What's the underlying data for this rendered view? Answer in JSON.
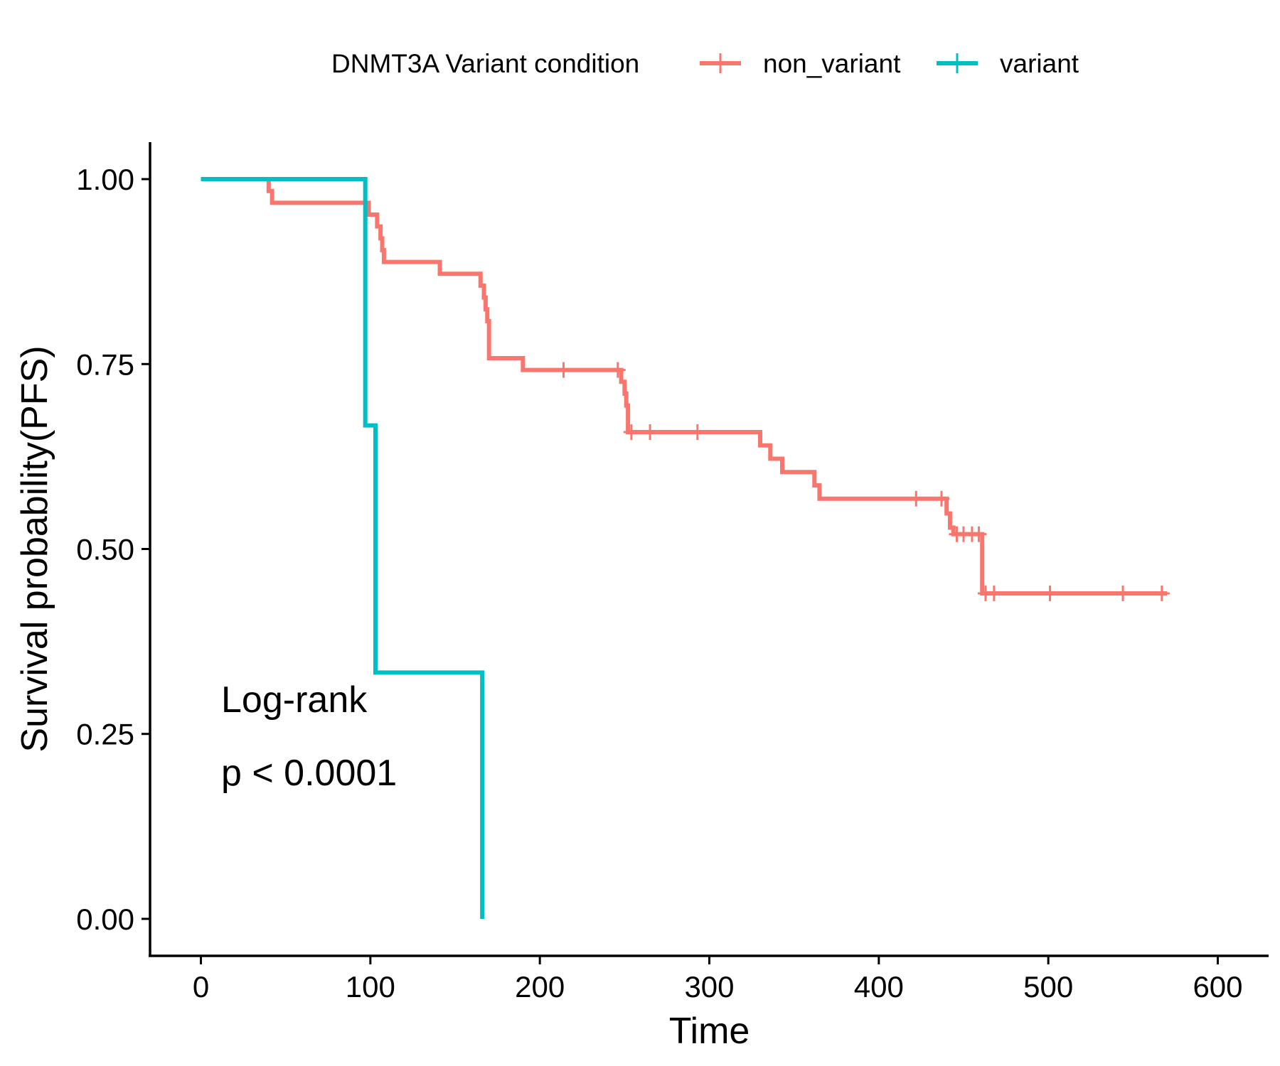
{
  "chart_data": {
    "type": "line",
    "step": true,
    "title": "",
    "xlabel": "Time",
    "ylabel": "Survival probability(PFS)",
    "xlim": [
      -30,
      630
    ],
    "ylim": [
      -0.05,
      1.05
    ],
    "xticks": [
      0,
      100,
      200,
      300,
      400,
      500,
      600
    ],
    "yticks": [
      0.0,
      0.25,
      0.5,
      0.75,
      1.0
    ],
    "xtick_labels": [
      "0",
      "100",
      "200",
      "300",
      "400",
      "500",
      "600"
    ],
    "ytick_labels": [
      "0.00",
      "0.25",
      "0.50",
      "0.75",
      "1.00"
    ],
    "grid": false,
    "legend": {
      "title": "DNMT3A Variant condition",
      "position": "top"
    },
    "annotations": [
      "Log-rank",
      "p < 0.0001"
    ],
    "series": [
      {
        "name": "non_variant",
        "color": "#F8766D",
        "steps": [
          [
            0,
            1.0
          ],
          [
            40,
            0.984
          ],
          [
            42,
            0.968
          ],
          [
            99,
            0.952
          ],
          [
            104,
            0.936
          ],
          [
            106,
            0.92
          ],
          [
            107,
            0.904
          ],
          [
            108,
            0.888
          ],
          [
            141,
            0.872
          ],
          [
            165,
            0.856
          ],
          [
            167,
            0.84
          ],
          [
            168,
            0.824
          ],
          [
            169,
            0.808
          ],
          [
            170,
            0.758
          ],
          [
            190,
            0.742
          ],
          [
            248,
            0.726
          ],
          [
            250,
            0.71
          ],
          [
            251,
            0.694
          ],
          [
            252,
            0.658
          ],
          [
            330,
            0.64
          ],
          [
            336,
            0.622
          ],
          [
            343,
            0.604
          ],
          [
            362,
            0.586
          ],
          [
            365,
            0.568
          ],
          [
            440,
            0.548
          ],
          [
            442,
            0.529
          ],
          [
            444,
            0.52
          ],
          [
            461,
            0.44
          ]
        ],
        "end_x": 570,
        "censor_times": [
          214,
          246,
          254,
          265,
          293,
          422,
          437,
          446,
          450,
          455,
          459,
          463,
          468,
          501,
          544,
          567
        ]
      },
      {
        "name": "variant",
        "color": "#00BFC4",
        "steps": [
          [
            0,
            1.0
          ],
          [
            97,
            0.667
          ],
          [
            103,
            0.333
          ],
          [
            166,
            0.0
          ]
        ],
        "end_x": 166,
        "censor_times": []
      }
    ]
  }
}
